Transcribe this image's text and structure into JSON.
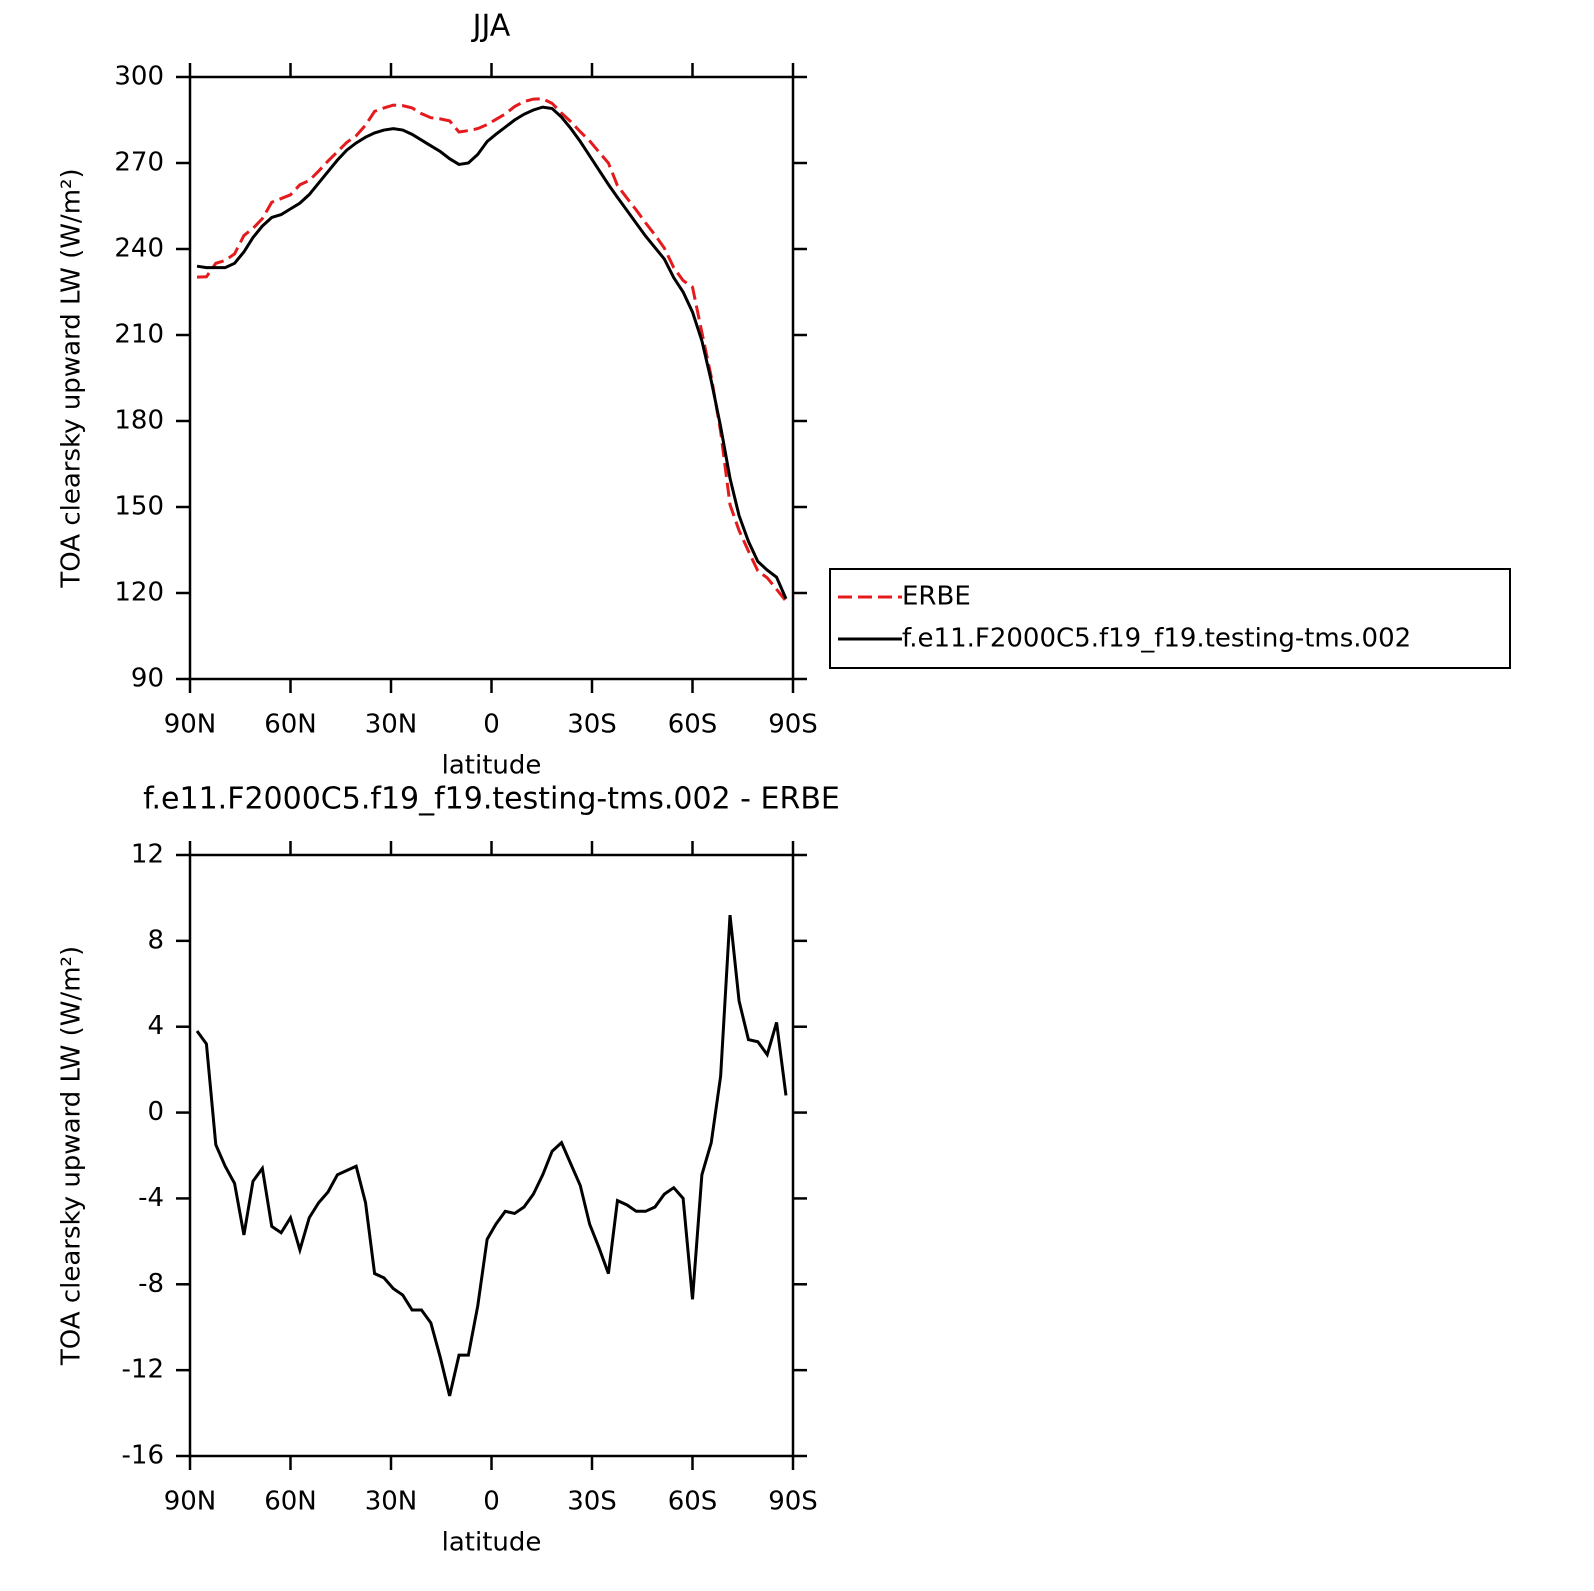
{
  "chart_data": [
    {
      "type": "line",
      "title": "JJA",
      "xlabel": "latitude",
      "ylabel": "TOA clearsky upward LW (W/m²)",
      "x": [
        87.9,
        85.1,
        82.3,
        79.5,
        76.7,
        73.9,
        71.2,
        68.4,
        65.6,
        62.8,
        60.0,
        57.2,
        54.4,
        51.6,
        48.8,
        46.0,
        43.2,
        40.4,
        37.6,
        34.9,
        32.1,
        29.3,
        26.5,
        23.7,
        20.9,
        18.1,
        15.3,
        12.5,
        9.7,
        6.9,
        4.1,
        1.3,
        -1.3,
        -4.1,
        -6.9,
        -9.7,
        -12.5,
        -15.3,
        -18.1,
        -20.9,
        -23.7,
        -26.5,
        -29.3,
        -32.1,
        -34.9,
        -37.6,
        -40.4,
        -43.2,
        -46.0,
        -48.8,
        -51.6,
        -54.4,
        -57.2,
        -60.0,
        -62.8,
        -65.6,
        -68.4,
        -71.2,
        -73.9,
        -76.7,
        -79.5,
        -82.3,
        -85.1,
        -87.9
      ],
      "series": [
        {
          "name": "ERBE",
          "color": "#e41a1c",
          "dash": true,
          "values": [
            230.2,
            230.3,
            235,
            236,
            238.3,
            244.7,
            247.2,
            250.6,
            256.3,
            257.6,
            258.9,
            262.4,
            263.9,
            267.2,
            270.7,
            273.9,
            277.2,
            279.5,
            283.2,
            288,
            289.2,
            290.2,
            290,
            289.2,
            287.2,
            285.8,
            285.4,
            284.7,
            280.8,
            281.3,
            282,
            283.4,
            285.2,
            287.1,
            289.7,
            291.4,
            292.3,
            292.4,
            290.8,
            287.4,
            284.4,
            280.9,
            277.7,
            273.8,
            270,
            262.1,
            257.8,
            253.6,
            249.1,
            244.9,
            240.3,
            233.5,
            229,
            226.7,
            210.9,
            195.4,
            176.3,
            150.8,
            141.8,
            134.6,
            127.7,
            125.3,
            121.3,
            117.2
          ]
        },
        {
          "name": "f.e11.F2000C5.f19_f19.testing-tms.002",
          "color": "#000000",
          "dash": false,
          "values": [
            234,
            233.5,
            233.5,
            233.5,
            235,
            239,
            244,
            248,
            251,
            252,
            254,
            256,
            259,
            263,
            267,
            271,
            274.5,
            277,
            279,
            280.5,
            281.5,
            282,
            281.5,
            280,
            278,
            276,
            274,
            271.5,
            269.5,
            270,
            273,
            277.5,
            280,
            282.5,
            285,
            287,
            288.5,
            289.5,
            289,
            286,
            282,
            277.5,
            272.5,
            267.5,
            262.5,
            258,
            253.5,
            249,
            244.5,
            240.5,
            236.5,
            230,
            225,
            218,
            208,
            194,
            178,
            160,
            147,
            138,
            131,
            128,
            125.5,
            118
          ]
        }
      ],
      "xlim": [
        90,
        -90
      ],
      "ylim": [
        90,
        300
      ],
      "xticks": [
        {
          "value": 90,
          "label": "90N"
        },
        {
          "value": 60,
          "label": "60N"
        },
        {
          "value": 30,
          "label": "30N"
        },
        0,
        {
          "value": -30,
          "label": "30S"
        },
        {
          "value": -60,
          "label": "60S"
        },
        {
          "value": -90,
          "label": "90S"
        }
      ],
      "yticks": [
        90,
        120,
        150,
        180,
        210,
        240,
        270,
        300
      ],
      "legend": "right"
    },
    {
      "type": "line",
      "title": "f.e11.F2000C5.f19_f19.testing-tms.002 - ERBE",
      "xlabel": "latitude",
      "ylabel": "TOA clearsky upward LW (W/m²)",
      "x": [
        87.9,
        85.1,
        82.3,
        79.5,
        76.7,
        73.9,
        71.2,
        68.4,
        65.6,
        62.8,
        60.0,
        57.2,
        54.4,
        51.6,
        48.8,
        46.0,
        43.2,
        40.4,
        37.6,
        34.9,
        32.1,
        29.3,
        26.5,
        23.7,
        20.9,
        18.1,
        15.3,
        12.5,
        9.7,
        6.9,
        4.1,
        1.3,
        -1.3,
        -4.1,
        -6.9,
        -9.7,
        -12.5,
        -15.3,
        -18.1,
        -20.9,
        -23.7,
        -26.5,
        -29.3,
        -32.1,
        -34.9,
        -37.6,
        -40.4,
        -43.2,
        -46.0,
        -48.8,
        -51.6,
        -54.4,
        -57.2,
        -60.0,
        -62.8,
        -65.6,
        -68.4,
        -71.2,
        -73.9,
        -76.7,
        -79.5,
        -82.3,
        -85.1,
        -87.9
      ],
      "series": [
        {
          "color": "#000000",
          "dash": false,
          "values": [
            3.8,
            3.2,
            -1.5,
            -2.5,
            -3.3,
            -5.7,
            -3.2,
            -2.6,
            -5.3,
            -5.6,
            -4.9,
            -6.4,
            -4.9,
            -4.2,
            -3.7,
            -2.9,
            -2.7,
            -2.5,
            -4.2,
            -7.5,
            -7.7,
            -8.2,
            -8.5,
            -9.2,
            -9.2,
            -9.8,
            -11.4,
            -13.2,
            -11.3,
            -11.3,
            -9.0,
            -5.9,
            -5.2,
            -4.6,
            -4.7,
            -4.4,
            -3.8,
            -2.9,
            -1.8,
            -1.4,
            -2.4,
            -3.4,
            -5.2,
            -6.3,
            -7.5,
            -4.1,
            -4.3,
            -4.6,
            -4.6,
            -4.4,
            -3.8,
            -3.5,
            -4.0,
            -8.7,
            -2.9,
            -1.4,
            1.7,
            9.2,
            5.2,
            3.4,
            3.3,
            2.7,
            4.2,
            0.8
          ]
        }
      ],
      "xlim": [
        90,
        -90
      ],
      "ylim": [
        -16,
        12
      ],
      "xticks": [
        {
          "value": 90,
          "label": "90N"
        },
        {
          "value": 60,
          "label": "60N"
        },
        {
          "value": 30,
          "label": "30N"
        },
        0,
        {
          "value": -30,
          "label": "30S"
        },
        {
          "value": -60,
          "label": "60S"
        },
        {
          "value": -90,
          "label": "90S"
        }
      ],
      "yticks": [
        -16,
        -12,
        -8,
        -4,
        0,
        4,
        8,
        12
      ]
    }
  ]
}
